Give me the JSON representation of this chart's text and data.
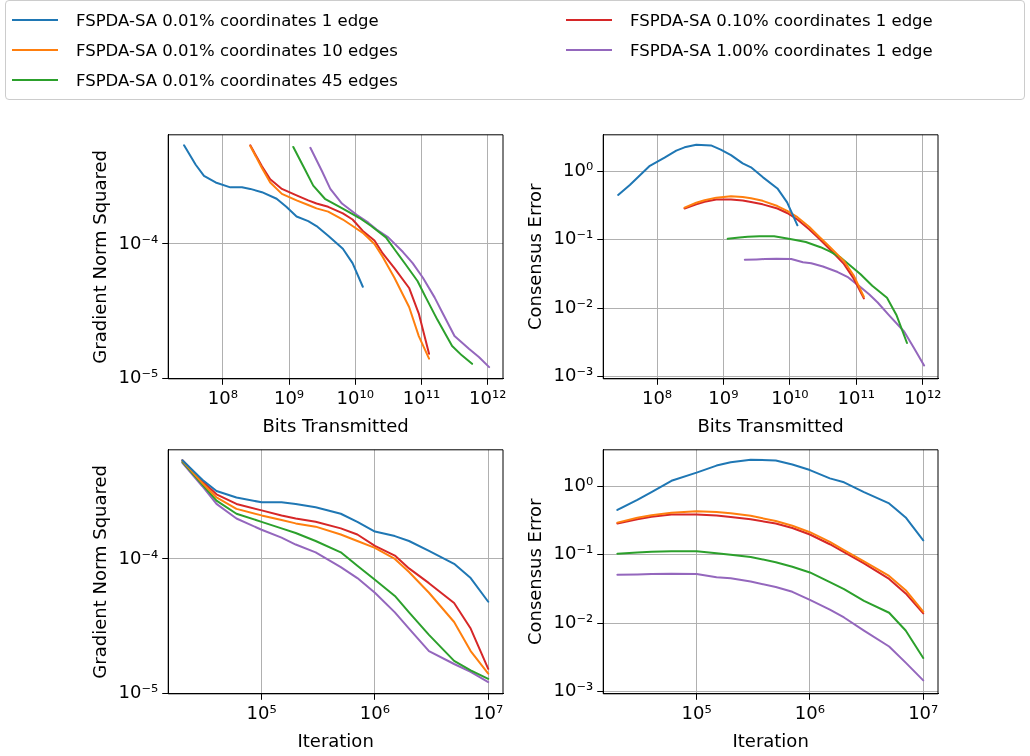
{
  "chart_data": [
    {
      "type": "line",
      "xlabel": "Bits Transmitted",
      "ylabel": "Gradient Norm Squared",
      "log": "xy",
      "grid": true,
      "legend": "top",
      "xlim": [
        15000000.0,
        1700000000000.0
      ],
      "xticks": [
        {
          "value": 100000000.0,
          "label": "10⁸"
        },
        {
          "value": 1000000000.0,
          "label": "10⁹"
        },
        {
          "value": 10000000000.0,
          "label": "10¹⁰"
        },
        {
          "value": 100000000000.0,
          "label": "10¹¹"
        },
        {
          "value": 1000000000000.0,
          "label": "10¹²"
        }
      ],
      "ylim": [
        9.9e-06,
        0.00065
      ],
      "yticks": [
        {
          "value": 1e-05,
          "label": "10⁻⁵"
        },
        {
          "value": 0.0001,
          "label": "10⁻⁴"
        }
      ],
      "series": [
        {
          "name": "FSPDA-SA 0.01% coordinates 1 edge",
          "color": "#1f77b4",
          "x": [
            26000000.0,
            39000000.0,
            52000000.0,
            78000000.0,
            130000000.0,
            195000000.0,
            260000000.0,
            390000000.0,
            650000000.0,
            910000000.0,
            1300000000.0,
            1950000000.0,
            2600000000.0,
            3900000000.0,
            6500000000.0,
            9100000000.0,
            13000000000.0
          ],
          "values": [
            0.000543,
            0.000389,
            0.000321,
            0.000287,
            0.000264,
            0.000264,
            0.000257,
            0.000243,
            0.000217,
            0.000189,
            0.00016,
            0.000148,
            0.000136,
            0.000115,
            9.2e-05,
            7.2e-05,
            4.8e-05
          ]
        },
        {
          "name": "FSPDA-SA 0.01% coordinates 10 edges",
          "color": "#ff7f0e",
          "x": [
            260000000.0,
            390000000.0,
            520000000.0,
            780000000.0,
            1300000000.0,
            1950000000.0,
            2600000000.0,
            3900000000.0,
            6500000000.0,
            9100000000.0,
            13000000000.0,
            19500000000.0,
            26000000000.0,
            39000000000.0,
            65000000000.0,
            91000000000.0,
            130000000000.0
          ],
          "values": [
            0.000537,
            0.000368,
            0.000287,
            0.000236,
            0.000211,
            0.000195,
            0.000184,
            0.000174,
            0.000152,
            0.000136,
            0.000121,
            0.0001,
            8e-05,
            5.6e-05,
            3.39e-05,
            2.06e-05,
            1.4e-05
          ]
        },
        {
          "name": "FSPDA-SA 0.01% coordinates 45 edges",
          "color": "#2ca02c",
          "x": [
            1160000000.0,
            1740000000.0,
            2320000000.0,
            3480000000.0,
            5800000000.0,
            8700000000.0,
            11600000000.0,
            17400000000.0,
            29000000000.0,
            40600000000.0,
            58000000000.0,
            87000000000.0,
            116000000000.0,
            174000000000.0,
            290000000000.0,
            406000000000.0,
            580000000000.0
          ],
          "values": [
            0.000528,
            0.000358,
            0.000272,
            0.000217,
            0.000189,
            0.000169,
            0.000156,
            0.000136,
            0.000112,
            8.9e-05,
            7e-05,
            5.3e-05,
            4e-05,
            2.72e-05,
            1.74e-05,
            1.48e-05,
            1.28e-05
          ]
        },
        {
          "name": "FSPDA-SA 0.10% coordinates 1 edge",
          "color": "#d62728",
          "x": [
            260000000.0,
            390000000.0,
            520000000.0,
            780000000.0,
            1300000000.0,
            1950000000.0,
            2600000000.0,
            3900000000.0,
            6500000000.0,
            9100000000.0,
            13000000000.0,
            19500000000.0,
            26000000000.0,
            39000000000.0,
            65000000000.0,
            91000000000.0,
            130000000000.0
          ],
          "values": [
            0.000543,
            0.000379,
            0.000303,
            0.000257,
            0.00023,
            0.000211,
            0.0002,
            0.000189,
            0.000169,
            0.000152,
            0.000125,
            0.000106,
            8.5e-05,
            6.6e-05,
            4.7e-05,
            3.03e-05,
            1.52e-05
          ]
        },
        {
          "name": "FSPDA-SA 1.00% coordinates 1 edge",
          "color": "#9467bd",
          "x": [
            2100000000.0,
            3150000000.0,
            4200000000.0,
            6300000000.0,
            10500000000.0,
            15750000000.0,
            21000000000.0,
            31500000000.0,
            52500000000.0,
            73500000000.0,
            105000000000.0,
            157500000000.0,
            210000000000.0,
            315000000000.0,
            525000000000.0,
            735000000000.0,
            1050000000000.0
          ],
          "values": [
            0.00052,
            0.000348,
            0.000257,
            0.0002,
            0.000165,
            0.000144,
            0.000128,
            0.000112,
            8.7e-05,
            7.2e-05,
            5.6e-05,
            4e-05,
            3.03e-05,
            2.06e-05,
            1.65e-05,
            1.44e-05,
            1.21e-05
          ]
        }
      ]
    },
    {
      "type": "line",
      "xlabel": "Bits Transmitted",
      "ylabel": "Consensus Error",
      "log": "xy",
      "grid": true,
      "xlim": [
        15500000.0,
        1700000000000.0
      ],
      "xticks": [
        {
          "value": 100000000.0,
          "label": "10⁸"
        },
        {
          "value": 1000000000.0,
          "label": "10⁹"
        },
        {
          "value": 10000000000.0,
          "label": "10¹⁰"
        },
        {
          "value": 100000000000.0,
          "label": "10¹¹"
        },
        {
          "value": 1000000000000.0,
          "label": "10¹²"
        }
      ],
      "ylim": [
        0.00093,
        3.4
      ],
      "yticks": [
        {
          "value": 0.001,
          "label": "10⁻³"
        },
        {
          "value": 0.01,
          "label": "10⁻²"
        },
        {
          "value": 0.1,
          "label": "10⁻¹"
        },
        {
          "value": 1,
          "label": "10⁰"
        }
      ],
      "series": [
        {
          "color": "#1f77b4",
          "x": [
            26000000.0,
            39000000.0,
            52000000.0,
            78000000.0,
            130000000.0,
            195000000.0,
            260000000.0,
            390000000.0,
            650000000.0,
            910000000.0,
            1300000000.0,
            1950000000.0,
            2600000000.0,
            3900000000.0,
            6500000000.0,
            9100000000.0,
            13000000000.0
          ],
          "values": [
            0.45,
            0.63,
            0.82,
            1.2,
            1.58,
            2.0,
            2.23,
            2.43,
            2.38,
            2.07,
            1.72,
            1.3,
            1.14,
            0.82,
            0.56,
            0.35,
            0.162
          ]
        },
        {
          "color": "#ff7f0e",
          "x": [
            260000000.0,
            390000000.0,
            520000000.0,
            780000000.0,
            1300000000.0,
            1950000000.0,
            2600000000.0,
            3900000000.0,
            6500000000.0,
            9100000000.0,
            13000000000.0,
            19500000000.0,
            26000000000.0,
            39000000000.0,
            65000000000.0,
            91000000000.0,
            130000000000.0
          ],
          "values": [
            0.294,
            0.346,
            0.377,
            0.411,
            0.43,
            0.421,
            0.403,
            0.369,
            0.31,
            0.264,
            0.213,
            0.154,
            0.117,
            0.08,
            0.049,
            0.0303,
            0.0147
          ]
        },
        {
          "color": "#2ca02c",
          "x": [
            1160000000.0,
            1740000000.0,
            2320000000.0,
            3480000000.0,
            5800000000.0,
            8700000000.0,
            11600000000.0,
            17400000000.0,
            29000000000.0,
            40600000000.0,
            58000000000.0,
            87000000000.0,
            116000000000.0,
            174000000000.0,
            290000000000.0,
            406000000000.0,
            580000000000.0
          ],
          "values": [
            0.103,
            0.108,
            0.11,
            0.112,
            0.112,
            0.105,
            0.0997,
            0.0924,
            0.0777,
            0.0668,
            0.055,
            0.0397,
            0.0313,
            0.0212,
            0.0142,
            0.0078,
            0.0031
          ]
        },
        {
          "color": "#d62728",
          "x": [
            260000000.0,
            390000000.0,
            520000000.0,
            780000000.0,
            1300000000.0,
            1950000000.0,
            2600000000.0,
            3900000000.0,
            6500000000.0,
            9100000000.0,
            13000000000.0,
            19500000000.0,
            26000000000.0,
            39000000000.0,
            65000000000.0,
            91000000000.0,
            130000000000.0
          ],
          "values": [
            0.285,
            0.328,
            0.357,
            0.386,
            0.386,
            0.373,
            0.354,
            0.328,
            0.285,
            0.245,
            0.197,
            0.142,
            0.109,
            0.0744,
            0.0443,
            0.0272,
            0.0139
          ]
        },
        {
          "color": "#9467bd",
          "x": [
            2100000000.0,
            3150000000.0,
            4200000000.0,
            6300000000.0,
            10500000000.0,
            15750000000.0,
            21000000000.0,
            31500000000.0,
            52500000000.0,
            73500000000.0,
            105000000000.0,
            157500000000.0,
            210000000000.0,
            315000000000.0,
            525000000000.0,
            735000000000.0,
            1050000000000.0
          ],
          "values": [
            0.0509,
            0.0515,
            0.0521,
            0.0526,
            0.0521,
            0.0467,
            0.0452,
            0.0406,
            0.0337,
            0.0287,
            0.0219,
            0.0158,
            0.0121,
            0.0078,
            0.00456,
            0.00265,
            0.00146
          ]
        }
      ]
    },
    {
      "type": "line",
      "xlabel": "Iteration",
      "ylabel": "Gradient Norm Squared",
      "log": "xy",
      "grid": true,
      "xlim": [
        15000.0,
        13500000.0
      ],
      "xticks": [
        {
          "value": 100000.0,
          "label": "10⁵"
        },
        {
          "value": 1000000.0,
          "label": "10⁶"
        },
        {
          "value": 10000000.0,
          "label": "10⁷"
        }
      ],
      "ylim": [
        9.9e-06,
        0.00065
      ],
      "yticks": [
        {
          "value": 1e-05,
          "label": "10⁻⁵"
        },
        {
          "value": 0.0001,
          "label": "10⁻⁴"
        }
      ],
      "x": [
        20000.0,
        30000.0,
        40000.0,
        60000.0,
        100000.0,
        150000.0,
        200000.0,
        300000.0,
        500000.0,
        700000.0,
        1000000.0,
        1500000.0,
        2000000.0,
        3000000.0,
        5000000.0,
        7000000.0,
        10000000.0
      ],
      "series": [
        {
          "color": "#1f77b4",
          "values": [
            0.000543,
            0.000389,
            0.000321,
            0.000287,
            0.000264,
            0.000264,
            0.000257,
            0.000243,
            0.000217,
            0.000189,
            0.00016,
            0.000148,
            0.000136,
            0.000115,
            9.2e-05,
            7.2e-05,
            4.8e-05
          ]
        },
        {
          "color": "#ff7f0e",
          "values": [
            0.000537,
            0.000368,
            0.000287,
            0.000236,
            0.000211,
            0.000195,
            0.000184,
            0.000174,
            0.000152,
            0.000136,
            0.000121,
            0.0001,
            8e-05,
            5.6e-05,
            3.39e-05,
            2.06e-05,
            1.4e-05
          ]
        },
        {
          "color": "#2ca02c",
          "values": [
            0.000528,
            0.000358,
            0.000272,
            0.000217,
            0.000189,
            0.000169,
            0.000156,
            0.000136,
            0.000112,
            8.9e-05,
            7e-05,
            5.3e-05,
            4e-05,
            2.72e-05,
            1.74e-05,
            1.48e-05,
            1.28e-05
          ]
        },
        {
          "color": "#d62728",
          "values": [
            0.000543,
            0.000379,
            0.000303,
            0.000257,
            0.00023,
            0.000211,
            0.0002,
            0.000189,
            0.000169,
            0.000152,
            0.000125,
            0.000106,
            8.5e-05,
            6.6e-05,
            4.7e-05,
            3.03e-05,
            1.52e-05
          ]
        },
        {
          "color": "#9467bd",
          "values": [
            0.00052,
            0.000348,
            0.000257,
            0.0002,
            0.000165,
            0.000144,
            0.000128,
            0.000112,
            8.7e-05,
            7.2e-05,
            5.6e-05,
            4e-05,
            3.03e-05,
            2.06e-05,
            1.65e-05,
            1.44e-05,
            1.21e-05
          ]
        }
      ]
    },
    {
      "type": "line",
      "xlabel": "Iteration",
      "ylabel": "Consensus Error",
      "log": "xy",
      "grid": true,
      "xlim": [
        15000.0,
        13500000.0
      ],
      "xticks": [
        {
          "value": 100000.0,
          "label": "10⁵"
        },
        {
          "value": 1000000.0,
          "label": "10⁶"
        },
        {
          "value": 10000000.0,
          "label": "10⁷"
        }
      ],
      "ylim": [
        0.00093,
        3.4
      ],
      "yticks": [
        {
          "value": 0.001,
          "label": "10⁻³"
        },
        {
          "value": 0.01,
          "label": "10⁻²"
        },
        {
          "value": 0.1,
          "label": "10⁻¹"
        },
        {
          "value": 1,
          "label": "10⁰"
        }
      ],
      "x": [
        20000.0,
        30000.0,
        40000.0,
        60000.0,
        100000.0,
        150000.0,
        200000.0,
        300000.0,
        500000.0,
        700000.0,
        1000000.0,
        1500000.0,
        2000000.0,
        3000000.0,
        5000000.0,
        7000000.0,
        10000000.0
      ],
      "series": [
        {
          "color": "#1f77b4",
          "values": [
            0.45,
            0.63,
            0.82,
            1.2,
            1.58,
            2.0,
            2.23,
            2.43,
            2.38,
            2.07,
            1.72,
            1.3,
            1.14,
            0.82,
            0.56,
            0.35,
            0.162
          ]
        },
        {
          "color": "#ff7f0e",
          "values": [
            0.294,
            0.346,
            0.377,
            0.411,
            0.43,
            0.421,
            0.403,
            0.369,
            0.31,
            0.264,
            0.213,
            0.154,
            0.117,
            0.08,
            0.049,
            0.0303,
            0.0147
          ]
        },
        {
          "color": "#2ca02c",
          "values": [
            0.103,
            0.108,
            0.11,
            0.112,
            0.112,
            0.105,
            0.0997,
            0.0924,
            0.0777,
            0.0668,
            0.055,
            0.0397,
            0.0313,
            0.0212,
            0.0142,
            0.0078,
            0.0031
          ]
        },
        {
          "color": "#d62728",
          "values": [
            0.285,
            0.328,
            0.357,
            0.386,
            0.386,
            0.373,
            0.354,
            0.328,
            0.285,
            0.245,
            0.197,
            0.142,
            0.109,
            0.0744,
            0.0443,
            0.0272,
            0.0139
          ]
        },
        {
          "color": "#9467bd",
          "values": [
            0.0509,
            0.0515,
            0.0521,
            0.0526,
            0.0521,
            0.0467,
            0.0452,
            0.0406,
            0.0337,
            0.0287,
            0.0219,
            0.0158,
            0.0121,
            0.0078,
            0.00456,
            0.00265,
            0.00146
          ]
        }
      ]
    }
  ]
}
